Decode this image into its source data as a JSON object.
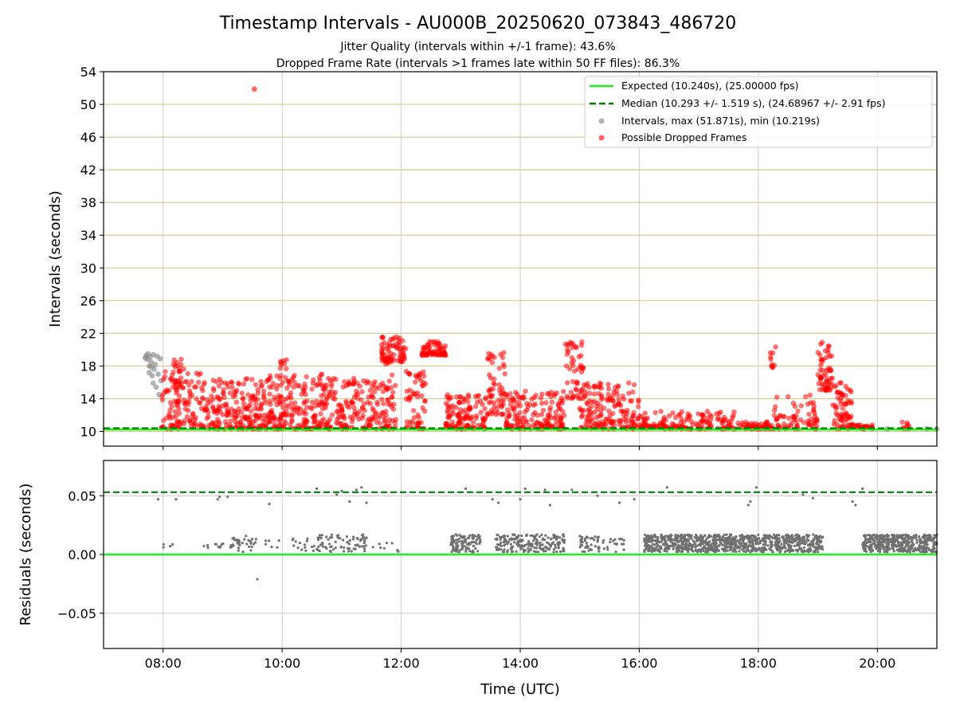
{
  "figure": {
    "title": "Timestamp Intervals - AU000B_20250620_073843_486720",
    "subtitle_1": "Jitter Quality (intervals within +/-1 frame): 43.6%",
    "subtitle_2": "Dropped Frame Rate (intervals >1 frames late within 50 FF files): 86.3%"
  },
  "chart_data": [
    {
      "type": "scatter",
      "title": "",
      "xlabel": "",
      "ylabel": "Intervals (seconds)",
      "x_range": [
        "07:00",
        "21:00"
      ],
      "x_ticks": [
        "08:00",
        "10:00",
        "12:00",
        "14:00",
        "16:00",
        "18:00",
        "20:00"
      ],
      "ylim": [
        8.2,
        54
      ],
      "y_ticks": [
        10,
        14,
        18,
        22,
        26,
        30,
        34,
        38,
        42,
        46,
        50,
        54
      ],
      "grid": true,
      "legend": {
        "placement": "upper-right",
        "entries": [
          {
            "label": "Expected (10.240s), (25.00000 fps)",
            "kind": "solid-line",
            "color": "#22ee22"
          },
          {
            "label": "Median (10.293 +/- 1.519 s), (24.68967 +/- 2.91 fps)",
            "kind": "dashed-line",
            "color": "#008000"
          },
          {
            "label": "Intervals, max (51.871s), min (10.219s)",
            "kind": "marker",
            "color": "#808080"
          },
          {
            "label": "Possible Dropped Frames",
            "kind": "marker",
            "color": "#ff0000"
          }
        ]
      },
      "reference_lines": {
        "expected": 10.24,
        "median": 10.293
      },
      "max_interval": {
        "x": "09:32",
        "y": 51.871
      },
      "series": [
        {
          "name": "Intervals",
          "color": "#808080",
          "points": [
            [
              "07:42",
              19.0
            ],
            [
              "07:43",
              19.3
            ],
            [
              "07:44",
              18.8
            ],
            [
              "07:45",
              19.5
            ],
            [
              "07:46",
              17.2
            ],
            [
              "07:47",
              19.1
            ],
            [
              "07:48",
              18.5
            ],
            [
              "07:49",
              16.8
            ],
            [
              "07:50",
              19.4
            ],
            [
              "07:51",
              17.6
            ],
            [
              "07:52",
              18.2
            ],
            [
              "07:53",
              15.4
            ],
            [
              "07:54",
              19.2
            ],
            [
              "07:55",
              17.0
            ],
            [
              "07:56",
              14.5
            ],
            [
              "07:57",
              18.9
            ],
            [
              "07:58",
              16.2
            ],
            [
              "07:46",
              18.0
            ],
            [
              "07:48",
              17.9
            ],
            [
              "07:50",
              15.9
            ],
            [
              "19:55",
              10.3
            ],
            [
              "20:10",
              10.3
            ],
            [
              "20:30",
              10.3
            ],
            [
              "20:50",
              10.3
            ],
            [
              "21:00",
              10.3
            ]
          ]
        },
        {
          "name": "Possible Dropped Frames",
          "color": "#ff0000",
          "segments": [
            {
              "start": "07:58",
              "end": "08:45",
              "min": 10.3,
              "max": 17.5,
              "density": 130
            },
            {
              "start": "08:10",
              "end": "08:25",
              "min": 15.0,
              "max": 18.9,
              "density": 20
            },
            {
              "start": "08:45",
              "end": "09:40",
              "min": 10.3,
              "max": 16.5,
              "density": 180
            },
            {
              "start": "09:40",
              "end": "10:45",
              "min": 10.3,
              "max": 17.0,
              "density": 220
            },
            {
              "start": "09:58",
              "end": "10:05",
              "min": 17.0,
              "max": 19.0,
              "density": 8
            },
            {
              "start": "10:45",
              "end": "11:35",
              "min": 10.3,
              "max": 16.5,
              "density": 140
            },
            {
              "start": "11:35",
              "end": "11:55",
              "min": 10.3,
              "max": 19.0,
              "density": 60
            },
            {
              "start": "11:40",
              "end": "12:05",
              "min": 18.5,
              "max": 21.6,
              "density": 70
            },
            {
              "start": "12:05",
              "end": "12:25",
              "min": 10.3,
              "max": 18.0,
              "density": 60
            },
            {
              "start": "12:20",
              "end": "12:45",
              "min": 19.3,
              "max": 21.0,
              "density": 70
            },
            {
              "start": "12:45",
              "end": "13:25",
              "min": 10.3,
              "max": 14.5,
              "density": 120
            },
            {
              "start": "13:25",
              "end": "13:45",
              "min": 12.0,
              "max": 19.8,
              "density": 60
            },
            {
              "start": "13:45",
              "end": "14:45",
              "min": 10.3,
              "max": 15.0,
              "density": 160
            },
            {
              "start": "14:45",
              "end": "15:05",
              "min": 14.0,
              "max": 21.0,
              "density": 50
            },
            {
              "start": "15:00",
              "end": "16:00",
              "min": 10.3,
              "max": 16.0,
              "density": 170
            },
            {
              "start": "16:00",
              "end": "17:40",
              "min": 10.3,
              "max": 12.5,
              "density": 160
            },
            {
              "start": "17:40",
              "end": "18:15",
              "min": 10.3,
              "max": 11.2,
              "density": 60
            },
            {
              "start": "18:12",
              "end": "18:18",
              "min": 17.8,
              "max": 20.4,
              "density": 10
            },
            {
              "start": "18:15",
              "end": "19:00",
              "min": 10.3,
              "max": 14.5,
              "density": 70
            },
            {
              "start": "19:00",
              "end": "19:15",
              "min": 15.0,
              "max": 20.9,
              "density": 60
            },
            {
              "start": "19:15",
              "end": "19:35",
              "min": 10.3,
              "max": 16.5,
              "density": 70
            },
            {
              "start": "19:35",
              "end": "19:55",
              "min": 10.3,
              "max": 10.8,
              "density": 30
            },
            {
              "start": "20:25",
              "end": "20:32",
              "min": 10.3,
              "max": 11.3,
              "density": 8
            }
          ],
          "points": [
            [
              "09:32",
              51.871
            ]
          ]
        }
      ]
    },
    {
      "type": "scatter",
      "title": "",
      "xlabel": "Time (UTC)",
      "ylabel": "Residuals (seconds)",
      "x_range": [
        "07:00",
        "21:00"
      ],
      "x_ticks": [
        "08:00",
        "10:00",
        "12:00",
        "14:00",
        "16:00",
        "18:00",
        "20:00"
      ],
      "ylim": [
        -0.08,
        0.08
      ],
      "y_ticks": [
        "−0.05",
        "0.00",
        "0.05"
      ],
      "y_tick_values": [
        -0.05,
        0.0,
        0.05
      ],
      "grid": true,
      "reference_lines": {
        "zero": 0.0,
        "threshold": 0.053
      },
      "series": [
        {
          "name": "Residuals",
          "color": "#707070",
          "segments": [
            {
              "start": "08:00",
              "end": "08:10",
              "min": 0.006,
              "max": 0.009,
              "density": 4
            },
            {
              "start": "08:40",
              "end": "09:10",
              "min": 0.005,
              "max": 0.01,
              "density": 14
            },
            {
              "start": "09:10",
              "end": "09:35",
              "min": 0.002,
              "max": 0.016,
              "density": 30
            },
            {
              "start": "09:40",
              "end": "10:00",
              "min": 0.002,
              "max": 0.012,
              "density": 6
            },
            {
              "start": "10:05",
              "end": "10:30",
              "min": 0.002,
              "max": 0.014,
              "density": 12
            },
            {
              "start": "10:30",
              "end": "11:00",
              "min": 0.002,
              "max": 0.017,
              "density": 40
            },
            {
              "start": "11:00",
              "end": "11:25",
              "min": 0.002,
              "max": 0.017,
              "density": 40
            },
            {
              "start": "11:30",
              "end": "12:00",
              "min": 0.002,
              "max": 0.01,
              "density": 8
            },
            {
              "start": "12:50",
              "end": "13:20",
              "min": 0.002,
              "max": 0.017,
              "density": 110
            },
            {
              "start": "13:35",
              "end": "14:45",
              "min": 0.002,
              "max": 0.017,
              "density": 200
            },
            {
              "start": "15:00",
              "end": "15:45",
              "min": 0.002,
              "max": 0.016,
              "density": 60
            },
            {
              "start": "16:05",
              "end": "19:05",
              "min": 0.002,
              "max": 0.017,
              "density": 900
            },
            {
              "start": "19:45",
              "end": "21:00",
              "min": 0.002,
              "max": 0.017,
              "density": 420
            }
          ],
          "points": [
            [
              "07:55",
              0.047
            ],
            [
              "08:13",
              0.047
            ],
            [
              "08:55",
              0.047
            ],
            [
              "08:57",
              0.049
            ],
            [
              "09:05",
              0.049
            ],
            [
              "09:35",
              -0.021
            ],
            [
              "09:47",
              0.043
            ],
            [
              "10:35",
              0.056
            ],
            [
              "10:55",
              0.051
            ],
            [
              "11:00",
              0.054
            ],
            [
              "11:08",
              0.045
            ],
            [
              "11:15",
              0.055
            ],
            [
              "11:20",
              0.057
            ],
            [
              "11:25",
              0.044
            ],
            [
              "13:05",
              0.056
            ],
            [
              "13:32",
              0.047
            ],
            [
              "13:38",
              0.044
            ],
            [
              "14:00",
              0.047
            ],
            [
              "14:05",
              0.056
            ],
            [
              "14:25",
              0.055
            ],
            [
              "14:30",
              0.042
            ],
            [
              "14:52",
              0.055
            ],
            [
              "15:18",
              0.05
            ],
            [
              "15:40",
              0.044
            ],
            [
              "15:55",
              0.047
            ],
            [
              "16:28",
              0.057
            ],
            [
              "17:50",
              0.042
            ],
            [
              "17:52",
              0.045
            ],
            [
              "17:58",
              0.057
            ],
            [
              "18:45",
              0.051
            ],
            [
              "18:55",
              0.048
            ],
            [
              "19:35",
              0.045
            ],
            [
              "19:38",
              0.042
            ],
            [
              "19:45",
              0.056
            ]
          ]
        }
      ]
    }
  ]
}
